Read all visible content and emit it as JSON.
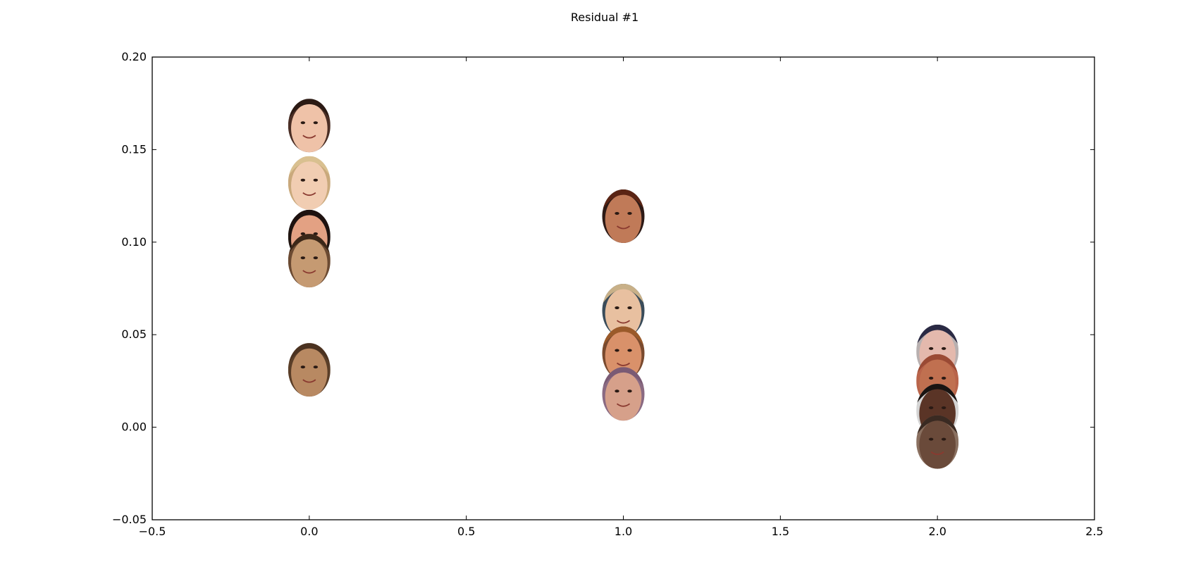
{
  "chart_data": {
    "type": "scatter",
    "title": "Residual #1",
    "xlabel": "",
    "ylabel": "",
    "xlim": [
      -0.5,
      2.5
    ],
    "ylim": [
      -0.05,
      0.2
    ],
    "x_ticks": [
      -0.5,
      0.0,
      0.5,
      1.0,
      1.5,
      2.0,
      2.5
    ],
    "y_ticks": [
      -0.05,
      0.0,
      0.05,
      0.1,
      0.15,
      0.2
    ],
    "x_tick_labels": [
      "−0.5",
      "0.0",
      "0.5",
      "1.0",
      "1.5",
      "2.0",
      "2.5"
    ],
    "y_tick_labels": [
      "−0.05",
      "0.00",
      "0.05",
      "0.10",
      "0.15",
      "0.20"
    ],
    "grid": false,
    "marker": "face-thumbnail",
    "points": [
      {
        "x": 0.0,
        "y": 0.163,
        "skin": "#efc2a8",
        "hair": "#2b1a14",
        "bg": "#4a2e25"
      },
      {
        "x": 0.0,
        "y": 0.132,
        "skin": "#f1cdb2",
        "hair": "#d9c090",
        "bg": "#c9a97c"
      },
      {
        "x": 0.0,
        "y": 0.103,
        "skin": "#e3a183",
        "hair": "#1e1210",
        "bg": "#1f1410"
      },
      {
        "x": 0.0,
        "y": 0.09,
        "skin": "#c59a72",
        "hair": "#3b2718",
        "bg": "#6b4a32"
      },
      {
        "x": 0.0,
        "y": 0.031,
        "skin": "#b88962",
        "hair": "#4b3220",
        "bg": "#5a3e28"
      },
      {
        "x": 1.0,
        "y": 0.114,
        "skin": "#c07a58",
        "hair": "#5a2414",
        "bg": "#2d1a16"
      },
      {
        "x": 1.0,
        "y": 0.063,
        "skin": "#e8c0a0",
        "hair": "#c8b088",
        "bg": "#3a4c5a"
      },
      {
        "x": 1.0,
        "y": 0.04,
        "skin": "#d9916a",
        "hair": "#9a5a2a",
        "bg": "#7a4a2e"
      },
      {
        "x": 1.0,
        "y": 0.018,
        "skin": "#d6a08a",
        "hair": "#7a5a74",
        "bg": "#8a6a82"
      },
      {
        "x": 2.0,
        "y": 0.041,
        "skin": "#e4b9ad",
        "hair": "#2a2a44",
        "bg": "#b8b0b0"
      },
      {
        "x": 2.0,
        "y": 0.025,
        "skin": "#c07050",
        "hair": "#9a4a34",
        "bg": "#b9644a"
      },
      {
        "x": 2.0,
        "y": 0.009,
        "skin": "#5a3426",
        "hair": "#1a1412",
        "bg": "#d4d4d4"
      },
      {
        "x": 2.0,
        "y": -0.008,
        "skin": "#6a4a3a",
        "hair": "#3a2a22",
        "bg": "#8a7060"
      }
    ]
  }
}
